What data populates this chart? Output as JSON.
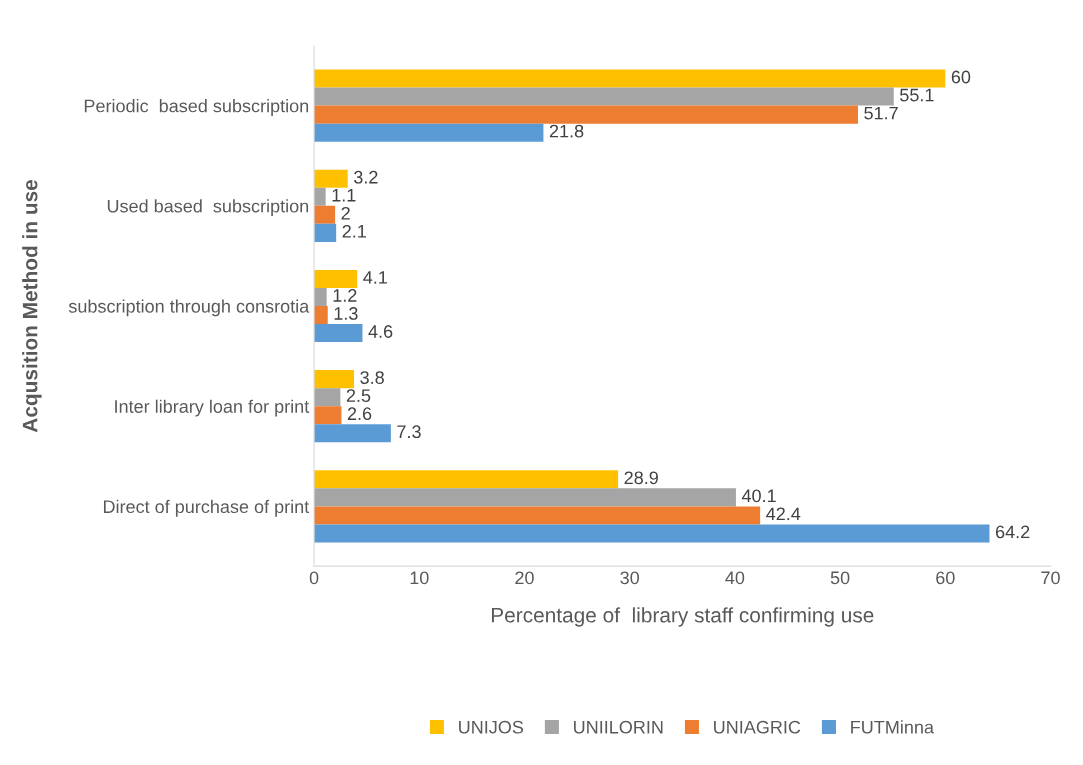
{
  "chart_data": {
    "type": "bar",
    "orientation": "horizontal",
    "categories": [
      "Periodic  based subscription",
      "Used based  subscription",
      "subscription through consrotia",
      "Inter library loan for print",
      "Direct of purchase of print"
    ],
    "series": [
      {
        "name": "UNIJOS",
        "color": "#ffc000",
        "values": [
          60,
          3.2,
          4.1,
          3.8,
          28.9
        ]
      },
      {
        "name": "UNIILORIN",
        "color": "#a5a5a5",
        "values": [
          55.1,
          1.1,
          1.2,
          2.5,
          40.1
        ]
      },
      {
        "name": "UNIAGRIC",
        "color": "#ed7d31",
        "values": [
          51.7,
          2,
          1.3,
          2.6,
          42.4
        ]
      },
      {
        "name": "FUTMinna",
        "color": "#5b9bd5",
        "values": [
          21.8,
          2.1,
          4.6,
          7.3,
          64.2
        ]
      }
    ],
    "xlim": [
      0,
      70
    ],
    "xticks": [
      0,
      10,
      20,
      30,
      40,
      50,
      60,
      70
    ],
    "xlabel": "Percentage of  library staff confirming use",
    "ylabel": "Acqusition Method in use",
    "data_labels": true,
    "grid": false,
    "legend": "bottom"
  }
}
